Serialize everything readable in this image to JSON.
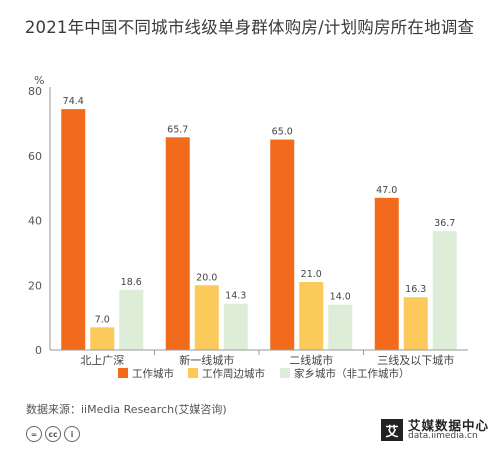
{
  "chart_data": {
    "type": "bar",
    "title": "2021年中国不同城市线级单身群体购房/计划购房所在地调查",
    "ylabel": "%",
    "ylim": [
      0,
      80
    ],
    "yticks": [
      0,
      20,
      40,
      60,
      80
    ],
    "categories": [
      "北上广深",
      "新一线城市",
      "二线城市",
      "三线及以下城市"
    ],
    "series": [
      {
        "name": "工作城市",
        "color": "#f26b1d",
        "values": [
          74.4,
          65.7,
          65.0,
          47.0
        ]
      },
      {
        "name": "工作周边城市",
        "color": "#fcc95b",
        "values": [
          7.0,
          20.0,
          21.0,
          16.3
        ]
      },
      {
        "name": "家乡城市（非工作城市）",
        "color": "#deedd7",
        "values": [
          18.6,
          14.3,
          14.0,
          36.7
        ]
      }
    ],
    "legend_position": "bottom",
    "grid": false
  },
  "source": "数据来源：iiMedia Research(艾媒咨询)",
  "license_icons": [
    "=",
    "cc",
    "i"
  ],
  "logo": {
    "mark": "艾",
    "name": "艾媒数据中心",
    "url": "data.iimedia.cn"
  }
}
